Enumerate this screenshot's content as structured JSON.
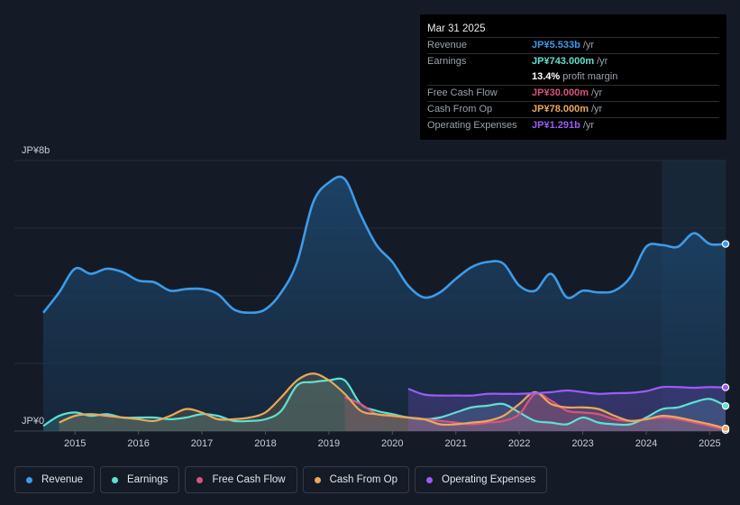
{
  "tooltip": {
    "date": "Mar 31 2025",
    "rows": [
      {
        "label": "Revenue",
        "value": "JP¥5.533b",
        "unit": "/yr",
        "color": "#3d9be9"
      },
      {
        "label": "Earnings",
        "value": "JP¥743.000m",
        "unit": "/yr",
        "color": "#5fe0d2"
      },
      {
        "label": "",
        "value": "13.4%",
        "unit": "profit margin",
        "color": "#ffffff"
      },
      {
        "label": "Free Cash Flow",
        "value": "JP¥30.000m",
        "unit": "/yr",
        "color": "#d9537f"
      },
      {
        "label": "Cash From Op",
        "value": "JP¥78.000m",
        "unit": "/yr",
        "color": "#eaa85a"
      },
      {
        "label": "Operating Expenses",
        "value": "JP¥1.291b",
        "unit": "/yr",
        "color": "#9b5cf6"
      }
    ]
  },
  "legend": [
    {
      "label": "Revenue",
      "color": "#3d9be9"
    },
    {
      "label": "Earnings",
      "color": "#5fe0d2"
    },
    {
      "label": "Free Cash Flow",
      "color": "#d9537f"
    },
    {
      "label": "Cash From Op",
      "color": "#eaa85a"
    },
    {
      "label": "Operating Expenses",
      "color": "#9b5cf6"
    }
  ],
  "chart_data": {
    "type": "area",
    "title": "",
    "xlabel": "",
    "ylabel": "",
    "y_top_label": "JP¥8b",
    "y_bottom_label": "JP¥0",
    "ylim": [
      0,
      8
    ],
    "xlim": [
      2014.5,
      2025.25
    ],
    "x_ticks": [
      "2015",
      "2016",
      "2017",
      "2018",
      "2019",
      "2020",
      "2021",
      "2022",
      "2023",
      "2024",
      "2025"
    ],
    "highlight_from": 2024.25,
    "series": [
      {
        "name": "Revenue",
        "color": "#3d9be9",
        "x": [
          2014.5,
          2014.75,
          2015.0,
          2015.25,
          2015.5,
          2015.75,
          2016.0,
          2016.25,
          2016.5,
          2016.75,
          2017.0,
          2017.25,
          2017.5,
          2017.75,
          2018.0,
          2018.25,
          2018.5,
          2018.75,
          2019.0,
          2019.25,
          2019.5,
          2019.75,
          2020.0,
          2020.25,
          2020.5,
          2020.75,
          2021.0,
          2021.25,
          2021.5,
          2021.75,
          2022.0,
          2022.25,
          2022.5,
          2022.75,
          2023.0,
          2023.25,
          2023.5,
          2023.75,
          2024.0,
          2024.25,
          2024.5,
          2024.75,
          2025.0,
          2025.25
        ],
        "values": [
          3.5,
          4.1,
          4.8,
          4.65,
          4.8,
          4.7,
          4.45,
          4.4,
          4.15,
          4.2,
          4.2,
          4.05,
          3.6,
          3.5,
          3.6,
          4.1,
          5.0,
          6.75,
          7.35,
          7.45,
          6.4,
          5.5,
          5.0,
          4.3,
          3.95,
          4.1,
          4.5,
          4.85,
          5.0,
          4.95,
          4.3,
          4.15,
          4.65,
          3.95,
          4.15,
          4.1,
          4.15,
          4.55,
          5.45,
          5.5,
          5.45,
          5.85,
          5.533,
          5.533
        ]
      },
      {
        "name": "Earnings",
        "color": "#5fe0d2",
        "x": [
          2014.5,
          2014.75,
          2015.0,
          2015.25,
          2015.5,
          2015.75,
          2016.0,
          2016.25,
          2016.5,
          2016.75,
          2017.0,
          2017.25,
          2017.5,
          2017.75,
          2018.0,
          2018.25,
          2018.5,
          2018.75,
          2019.0,
          2019.25,
          2019.5,
          2019.75,
          2020.0,
          2020.25,
          2020.5,
          2020.75,
          2021.0,
          2021.25,
          2021.5,
          2021.75,
          2022.0,
          2022.25,
          2022.5,
          2022.75,
          2023.0,
          2023.25,
          2023.5,
          2023.75,
          2024.0,
          2024.25,
          2024.5,
          2024.75,
          2025.0,
          2025.25
        ],
        "values": [
          0.15,
          0.45,
          0.55,
          0.45,
          0.5,
          0.4,
          0.4,
          0.4,
          0.35,
          0.4,
          0.5,
          0.45,
          0.3,
          0.3,
          0.35,
          0.6,
          1.35,
          1.45,
          1.5,
          1.5,
          0.8,
          0.6,
          0.5,
          0.4,
          0.35,
          0.4,
          0.55,
          0.7,
          0.75,
          0.8,
          0.55,
          0.3,
          0.25,
          0.2,
          0.4,
          0.25,
          0.2,
          0.2,
          0.4,
          0.65,
          0.7,
          0.85,
          0.95,
          0.743
        ]
      },
      {
        "name": "Free Cash Flow",
        "color": "#d9537f",
        "x": [
          2019.25,
          2019.5,
          2019.75,
          2020.0,
          2020.25,
          2020.5,
          2020.75,
          2021.0,
          2021.25,
          2021.5,
          2021.75,
          2022.0,
          2022.25,
          2022.5,
          2022.75,
          2023.0,
          2023.25,
          2023.5,
          2023.75,
          2024.0,
          2024.25,
          2024.5,
          2024.75,
          2025.0,
          2025.25
        ],
        "values": [
          1.0,
          0.8,
          0.5,
          0.45,
          0.4,
          0.35,
          0.3,
          0.25,
          0.2,
          0.25,
          0.3,
          0.5,
          1.1,
          0.9,
          0.6,
          0.55,
          0.5,
          0.35,
          0.3,
          0.35,
          0.4,
          0.35,
          0.25,
          0.15,
          0.03
        ]
      },
      {
        "name": "Cash From Op",
        "color": "#eaa85a",
        "x": [
          2014.75,
          2015.0,
          2015.25,
          2015.5,
          2015.75,
          2016.0,
          2016.25,
          2016.5,
          2016.75,
          2017.0,
          2017.25,
          2017.5,
          2017.75,
          2018.0,
          2018.25,
          2018.5,
          2018.75,
          2019.0,
          2019.25,
          2019.5,
          2019.75,
          2020.0,
          2020.25,
          2020.5,
          2020.75,
          2021.0,
          2021.25,
          2021.5,
          2021.75,
          2022.0,
          2022.25,
          2022.5,
          2022.75,
          2023.0,
          2023.25,
          2023.5,
          2023.75,
          2024.0,
          2024.25,
          2024.5,
          2024.75,
          2025.0,
          2025.25
        ],
        "values": [
          0.25,
          0.45,
          0.5,
          0.45,
          0.4,
          0.35,
          0.3,
          0.45,
          0.65,
          0.55,
          0.35,
          0.35,
          0.4,
          0.55,
          1.0,
          1.5,
          1.7,
          1.5,
          1.1,
          0.6,
          0.5,
          0.45,
          0.4,
          0.35,
          0.2,
          0.2,
          0.25,
          0.3,
          0.45,
          0.8,
          1.15,
          0.8,
          0.7,
          0.7,
          0.65,
          0.45,
          0.3,
          0.35,
          0.45,
          0.4,
          0.3,
          0.2,
          0.078
        ]
      },
      {
        "name": "Operating Expenses",
        "color": "#9b5cf6",
        "x": [
          2020.25,
          2020.5,
          2020.75,
          2021.0,
          2021.25,
          2021.5,
          2021.75,
          2022.0,
          2022.25,
          2022.5,
          2022.75,
          2023.0,
          2023.25,
          2023.5,
          2023.75,
          2024.0,
          2024.25,
          2024.5,
          2024.75,
          2025.0,
          2025.25
        ],
        "values": [
          1.25,
          1.08,
          1.05,
          1.05,
          1.05,
          1.1,
          1.1,
          1.1,
          1.12,
          1.15,
          1.2,
          1.15,
          1.1,
          1.12,
          1.13,
          1.18,
          1.3,
          1.3,
          1.28,
          1.3,
          1.291
        ]
      }
    ]
  }
}
